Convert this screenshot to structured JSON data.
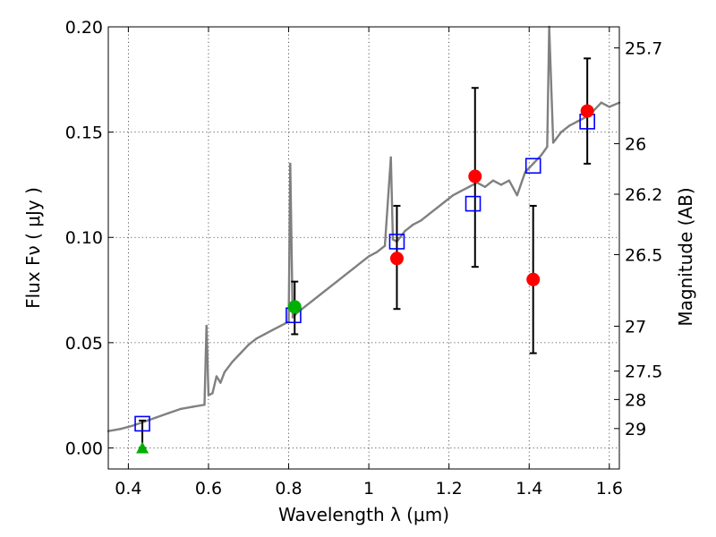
{
  "chart_data": {
    "type": "scatter",
    "title": "",
    "xlabel": "Wavelength  λ (μm)",
    "ylabel": "Flux  Fν ( μJy )",
    "ylabel_right": "Magnitude (AB)",
    "xlim": [
      0.35,
      1.625
    ],
    "ylim": [
      -0.01,
      0.2
    ],
    "grid": true,
    "x_ticks": [
      {
        "value": 0.4,
        "label": "0.4"
      },
      {
        "value": 0.6,
        "label": "0.6"
      },
      {
        "value": 0.8,
        "label": "0.8"
      },
      {
        "value": 1.0,
        "label": "1"
      },
      {
        "value": 1.2,
        "label": "1.2"
      },
      {
        "value": 1.4,
        "label": "1.4"
      },
      {
        "value": 1.6,
        "label": "1.6"
      }
    ],
    "y_ticks": [
      {
        "value": 0.0,
        "label": "0.00"
      },
      {
        "value": 0.05,
        "label": "0.05"
      },
      {
        "value": 0.1,
        "label": "0.10"
      },
      {
        "value": 0.15,
        "label": "0.15"
      },
      {
        "value": 0.2,
        "label": "0.20"
      }
    ],
    "right_ticks": [
      {
        "flux": 0.19,
        "label": "25.7"
      },
      {
        "flux": 0.1445,
        "label": "26"
      },
      {
        "flux": 0.1205,
        "label": "26.2"
      },
      {
        "flux": 0.0918,
        "label": "26.5"
      },
      {
        "flux": 0.0578,
        "label": "27"
      },
      {
        "flux": 0.0365,
        "label": "27.5"
      },
      {
        "flux": 0.023,
        "label": "28"
      },
      {
        "flux": 0.0092,
        "label": "29"
      }
    ],
    "colors": {
      "spectrum": "#808080",
      "model_box": "#0000ff",
      "detection": "#ff0000",
      "green_point": "#00b000",
      "errorbar": "#000000"
    },
    "series": [
      {
        "style": "line",
        "points": [
          [
            0.35,
            0.008
          ],
          [
            0.38,
            0.009
          ],
          [
            0.41,
            0.0105
          ],
          [
            0.44,
            0.0125
          ],
          [
            0.47,
            0.0145
          ],
          [
            0.5,
            0.0165
          ],
          [
            0.53,
            0.0185
          ],
          [
            0.56,
            0.0195
          ],
          [
            0.59,
            0.0205
          ],
          [
            0.595,
            0.058
          ],
          [
            0.6,
            0.025
          ],
          [
            0.61,
            0.026
          ],
          [
            0.62,
            0.034
          ],
          [
            0.63,
            0.031
          ],
          [
            0.64,
            0.036
          ],
          [
            0.66,
            0.041
          ],
          [
            0.68,
            0.045
          ],
          [
            0.7,
            0.049
          ],
          [
            0.72,
            0.052
          ],
          [
            0.74,
            0.054
          ],
          [
            0.76,
            0.056
          ],
          [
            0.78,
            0.058
          ],
          [
            0.8,
            0.06
          ],
          [
            0.804,
            0.135
          ],
          [
            0.81,
            0.062
          ],
          [
            0.82,
            0.064
          ],
          [
            0.84,
            0.067
          ],
          [
            0.86,
            0.07
          ],
          [
            0.88,
            0.073
          ],
          [
            0.9,
            0.076
          ],
          [
            0.92,
            0.079
          ],
          [
            0.94,
            0.082
          ],
          [
            0.96,
            0.085
          ],
          [
            0.98,
            0.088
          ],
          [
            1.0,
            0.091
          ],
          [
            1.02,
            0.093
          ],
          [
            1.04,
            0.096
          ],
          [
            1.055,
            0.138
          ],
          [
            1.06,
            0.099
          ],
          [
            1.07,
            0.098
          ],
          [
            1.09,
            0.103
          ],
          [
            1.11,
            0.106
          ],
          [
            1.13,
            0.108
          ],
          [
            1.15,
            0.111
          ],
          [
            1.17,
            0.114
          ],
          [
            1.19,
            0.117
          ],
          [
            1.21,
            0.12
          ],
          [
            1.23,
            0.122
          ],
          [
            1.25,
            0.124
          ],
          [
            1.27,
            0.126
          ],
          [
            1.29,
            0.124
          ],
          [
            1.31,
            0.127
          ],
          [
            1.33,
            0.125
          ],
          [
            1.35,
            0.127
          ],
          [
            1.37,
            0.12
          ],
          [
            1.39,
            0.131
          ],
          [
            1.41,
            0.135
          ],
          [
            1.43,
            0.139
          ],
          [
            1.445,
            0.143
          ],
          [
            1.45,
            0.21
          ],
          [
            1.46,
            0.145
          ],
          [
            1.48,
            0.15
          ],
          [
            1.5,
            0.153
          ],
          [
            1.52,
            0.155
          ],
          [
            1.54,
            0.157
          ],
          [
            1.56,
            0.16
          ],
          [
            1.58,
            0.164
          ],
          [
            1.6,
            0.162
          ],
          [
            1.625,
            0.164
          ]
        ]
      },
      {
        "style": "box",
        "points": [
          [
            0.435,
            0.0115
          ],
          [
            0.812,
            0.063
          ],
          [
            1.07,
            0.098
          ],
          [
            1.26,
            0.116
          ],
          [
            1.41,
            0.134
          ],
          [
            1.545,
            0.155
          ]
        ]
      },
      {
        "style": "circle",
        "points": [
          {
            "x": 1.07,
            "y": 0.09,
            "lo": 0.066,
            "hi": 0.115
          },
          {
            "x": 1.265,
            "y": 0.129,
            "lo": 0.086,
            "hi": 0.171
          },
          {
            "x": 1.41,
            "y": 0.08,
            "lo": 0.045,
            "hi": 0.115
          },
          {
            "x": 1.545,
            "y": 0.16,
            "lo": 0.135,
            "hi": 0.185
          }
        ]
      },
      {
        "style": "circle-green",
        "points": [
          {
            "x": 0.815,
            "y": 0.067,
            "lo": 0.054,
            "hi": 0.079
          }
        ]
      },
      {
        "style": "triangle",
        "points": [
          {
            "x": 0.435,
            "y": 0.0,
            "lo": 0.0,
            "hi": 0.013
          }
        ]
      }
    ]
  }
}
